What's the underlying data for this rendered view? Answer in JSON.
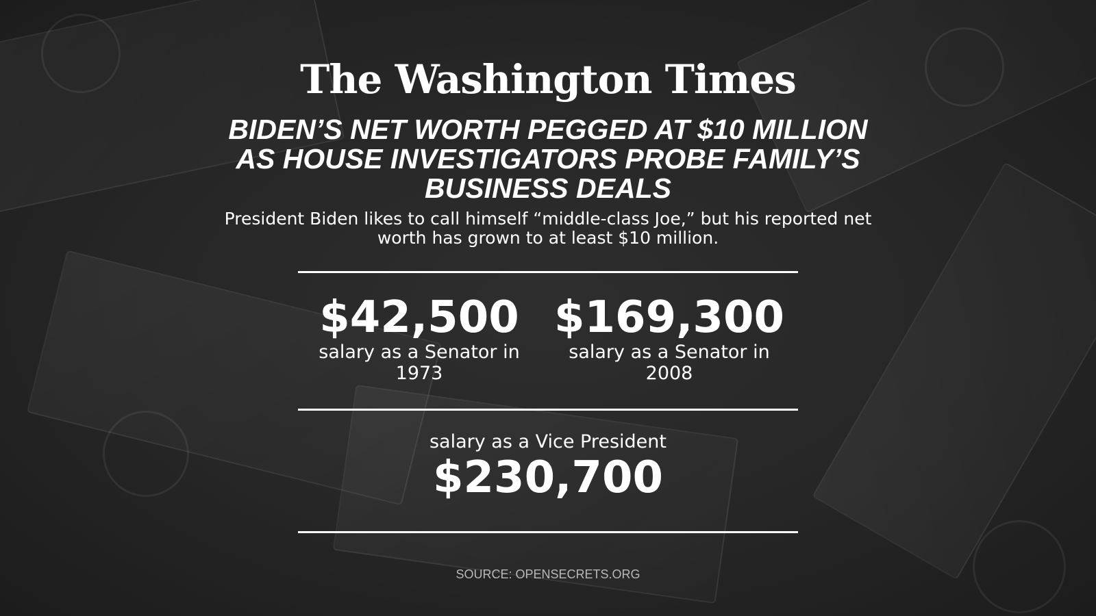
{
  "logo": "The Washington Times",
  "headline": [
    "Biden’s net worth pegged at $10 million",
    "as House investigators probe family’s",
    "business deals"
  ],
  "subtitle": [
    "President Biden likes to call himself “middle-class Joe,” but his reported net",
    "worth has grown to at least $10 million."
  ],
  "stats": [
    {
      "value": "$42,500",
      "label": [
        "salary as a Senator in",
        "1973"
      ]
    },
    {
      "value": "$169,300",
      "label": [
        "salary as a Senator in",
        "2008"
      ]
    },
    {
      "value": "$230,700",
      "label": [
        "salary as a Vice President"
      ]
    }
  ],
  "source": "SOURCE: OPENSECRETS.ORG",
  "colors": {
    "text": "#ffffff",
    "background": "#262626",
    "source": "#b8b8b8"
  }
}
